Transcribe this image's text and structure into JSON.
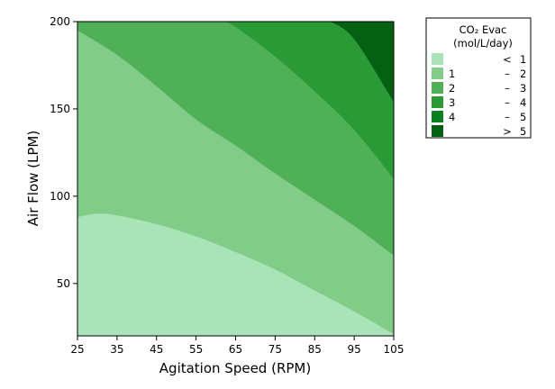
{
  "chart_data": {
    "type": "contour",
    "xlabel": "Agitation Speed (RPM)",
    "ylabel": "Air Flow (LPM)",
    "xlim": [
      25,
      105
    ],
    "ylim": [
      20,
      200
    ],
    "x_ticks": [
      "25",
      "35",
      "45",
      "55",
      "65",
      "75",
      "85",
      "95",
      "105"
    ],
    "y_ticks": [
      "50",
      "100",
      "150",
      "200"
    ],
    "legend": {
      "title_line1": "CO₂ Evac",
      "title_line2": "(mol/L/day)",
      "entries": [
        {
          "from": "",
          "dash": "<",
          "to": "1",
          "color": "#a8e4b8"
        },
        {
          "from": "1",
          "dash": "–",
          "to": "2",
          "color": "#80cc88"
        },
        {
          "from": "2",
          "dash": "–",
          "to": "3",
          "color": "#50b058"
        },
        {
          "from": "3",
          "dash": "–",
          "to": "4",
          "color": "#2a9a36"
        },
        {
          "from": "4",
          "dash": "–",
          "to": "5",
          "color": "#0a801e"
        },
        {
          "from": "",
          "dash": ">",
          "to": "5",
          "color": "#046012"
        }
      ]
    },
    "contour_boundaries": [
      {
        "level": 1,
        "points": [
          [
            25,
            88
          ],
          [
            30,
            90
          ],
          [
            35,
            89
          ],
          [
            45,
            84
          ],
          [
            55,
            77
          ],
          [
            65,
            68
          ],
          [
            75,
            58
          ],
          [
            85,
            46
          ],
          [
            95,
            34
          ],
          [
            105,
            21
          ]
        ]
      },
      {
        "level": 2,
        "points": [
          [
            25,
            195
          ],
          [
            35,
            181
          ],
          [
            45,
            163
          ],
          [
            55,
            144
          ],
          [
            65,
            129
          ],
          [
            75,
            113
          ],
          [
            85,
            98
          ],
          [
            95,
            83
          ],
          [
            105,
            66
          ]
        ]
      },
      {
        "level": 3,
        "points": [
          [
            62,
            200
          ],
          [
            65,
            197
          ],
          [
            75,
            180
          ],
          [
            85,
            160
          ],
          [
            95,
            138
          ],
          [
            105,
            110
          ]
        ]
      },
      {
        "level": 4,
        "points": [
          [
            89,
            200
          ],
          [
            95,
            190
          ],
          [
            105,
            154
          ]
        ]
      }
    ]
  }
}
